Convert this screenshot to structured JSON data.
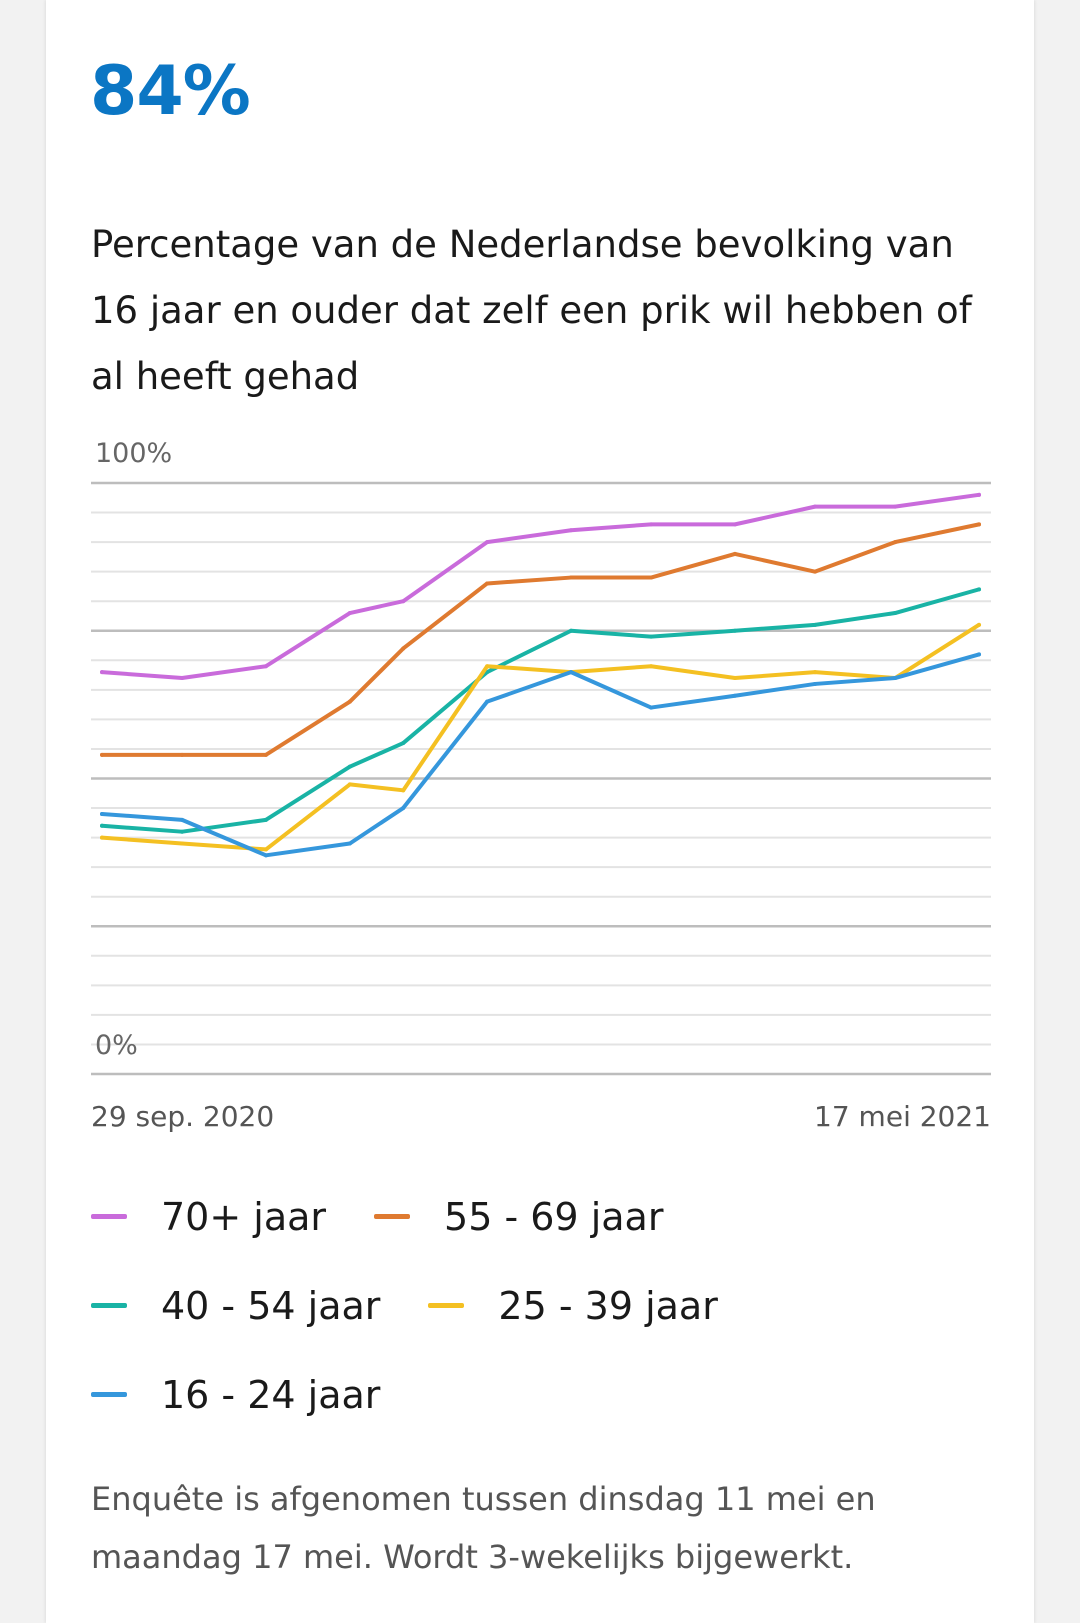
{
  "headline": "84%",
  "title": "Percentage van de Nederlandse bevolking van 16 jaar en ouder dat zelf een prik wil hebben of al heeft gehad",
  "footer": "Enquête is afgenomen tussen dinsdag 11 mei en maandag 17 mei. Wordt 3-wekelijks bijgewerkt.",
  "chart_data": {
    "type": "line",
    "title": "Percentage van de Nederlandse bevolking van 16 jaar en ouder dat zelf een prik wil hebben of al heeft gehad",
    "xlabel": "",
    "ylabel": "",
    "x_unit": "days since 29 sep. 2020 (approx.)",
    "x": [
      0,
      21,
      43,
      65,
      79,
      101,
      123,
      144,
      166,
      187,
      208,
      230
    ],
    "xlim": [
      0,
      230
    ],
    "x_tick_labels": [
      "29 sep. 2020",
      "17 mei 2021"
    ],
    "ylim": [
      0,
      100
    ],
    "y_tick_labels": [
      "100%",
      "0%"
    ],
    "grid": true,
    "grid_step": 5,
    "legend_position": "bottom",
    "series": [
      {
        "name": "70+ jaar",
        "color": "#c96bdb",
        "values": [
          68,
          67,
          69,
          78,
          80,
          90,
          92,
          93,
          93,
          96,
          96,
          98
        ]
      },
      {
        "name": "55 - 69 jaar",
        "color": "#df7a30",
        "values": [
          54,
          54,
          54,
          63,
          72,
          83,
          84,
          84,
          88,
          85,
          90,
          93
        ]
      },
      {
        "name": "40 - 54 jaar",
        "color": "#19b3a5",
        "values": [
          42,
          41,
          43,
          52,
          56,
          68,
          75,
          74,
          75,
          76,
          78,
          82
        ]
      },
      {
        "name": "25 - 39 jaar",
        "color": "#f4c022",
        "values": [
          40,
          39,
          38,
          49,
          48,
          69,
          68,
          69,
          67,
          68,
          67,
          76
        ]
      },
      {
        "name": "16 - 24 jaar",
        "color": "#3597dc",
        "values": [
          44,
          43,
          37,
          39,
          45,
          63,
          68,
          62,
          64,
          66,
          67,
          71
        ]
      }
    ]
  }
}
